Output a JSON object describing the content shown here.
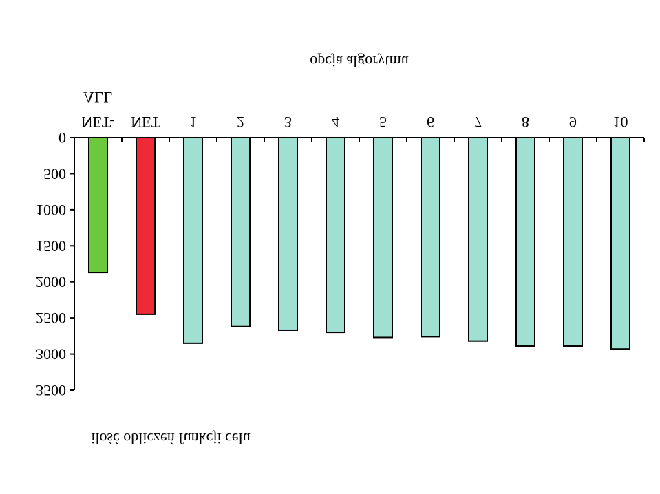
{
  "chart_data": {
    "type": "bar",
    "title": "",
    "xlabel": "opcja algorytmu",
    "ylabel": "ilość obliczeń funkcji celu",
    "categories": [
      [
        "NET-",
        "ALL"
      ],
      [
        "NET"
      ],
      [
        "1"
      ],
      [
        "2"
      ],
      [
        "3"
      ],
      [
        "4"
      ],
      [
        "5"
      ],
      [
        "6"
      ],
      [
        "7"
      ],
      [
        "8"
      ],
      [
        "9"
      ],
      [
        "10"
      ]
    ],
    "values": [
      1870,
      2450,
      2850,
      2620,
      2670,
      2700,
      2770,
      2760,
      2820,
      2890,
      2890,
      2930
    ],
    "bar_colors": [
      "#6cc83c",
      "#ee2a36",
      "#9fe0d3",
      "#9fe0d3",
      "#9fe0d3",
      "#9fe0d3",
      "#9fe0d3",
      "#9fe0d3",
      "#9fe0d3",
      "#9fe0d3",
      "#9fe0d3",
      "#9fe0d3"
    ],
    "ylim": [
      0,
      3500
    ],
    "yticks": [
      "0",
      "500",
      "1000",
      "1500",
      "2000",
      "2500",
      "3000",
      "3500"
    ],
    "y_reversed": true,
    "x_axis_position": "top",
    "image_vertically_mirrored": true,
    "grid": false,
    "legend": "none"
  }
}
